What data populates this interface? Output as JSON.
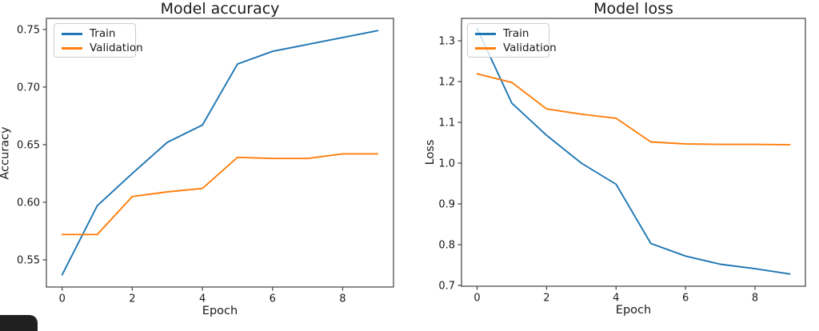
{
  "figure": {
    "background": "#ffffff"
  },
  "colors": {
    "train": "#1f77b4",
    "validation": "#ff7f0e",
    "axis": "#4d4d4d",
    "text": "#1a1a1a",
    "legend_border": "#cccccc",
    "corner_overlay": "#202020"
  },
  "chart_data": [
    {
      "type": "line",
      "title": "Model accuracy",
      "xlabel": "Epoch",
      "ylabel": "Accuracy",
      "x": [
        0,
        1,
        2,
        3,
        4,
        5,
        6,
        7,
        8,
        9
      ],
      "series": [
        {
          "name": "Train",
          "color": "#1f77b4",
          "values": [
            0.537,
            0.597,
            0.625,
            0.652,
            0.667,
            0.72,
            0.731,
            0.737,
            0.743,
            0.749
          ]
        },
        {
          "name": "Validation",
          "color": "#ff7f0e",
          "values": [
            0.572,
            0.572,
            0.605,
            0.609,
            0.612,
            0.639,
            0.638,
            0.638,
            0.642,
            0.642
          ]
        }
      ],
      "xlim": [
        -0.45,
        9.45
      ],
      "ylim": [
        0.5264,
        0.7596
      ],
      "xticks": [
        0,
        2,
        4,
        6,
        8
      ],
      "xtick_labels": [
        "0",
        "2",
        "4",
        "6",
        "8"
      ],
      "yticks": [
        0.55,
        0.6,
        0.65,
        0.7,
        0.75
      ],
      "ytick_labels": [
        "0.55",
        "0.60",
        "0.65",
        "0.70",
        "0.75"
      ],
      "grid": false,
      "legend_position": "upper-left"
    },
    {
      "type": "line",
      "title": "Model loss",
      "xlabel": "Epoch",
      "ylabel": "Loss",
      "x": [
        0,
        1,
        2,
        3,
        4,
        5,
        6,
        7,
        8,
        9
      ],
      "series": [
        {
          "name": "Train",
          "color": "#1f77b4",
          "values": [
            1.33,
            1.147,
            1.068,
            1.0,
            0.948,
            0.803,
            0.772,
            0.752,
            0.741,
            0.728
          ]
        },
        {
          "name": "Validation",
          "color": "#ff7f0e",
          "values": [
            1.219,
            1.198,
            1.133,
            1.12,
            1.11,
            1.052,
            1.047,
            1.046,
            1.046,
            1.045
          ]
        }
      ],
      "xlim": [
        -0.45,
        9.45
      ],
      "ylim": [
        0.698,
        1.355
      ],
      "xticks": [
        0,
        2,
        4,
        6,
        8
      ],
      "xtick_labels": [
        "0",
        "2",
        "4",
        "6",
        "8"
      ],
      "yticks": [
        0.7,
        0.8,
        0.9,
        1.0,
        1.1,
        1.2,
        1.3
      ],
      "ytick_labels": [
        "0.7",
        "0.8",
        "0.9",
        "1.0",
        "1.1",
        "1.2",
        "1.3"
      ],
      "grid": false,
      "legend_position": "upper-left"
    }
  ]
}
